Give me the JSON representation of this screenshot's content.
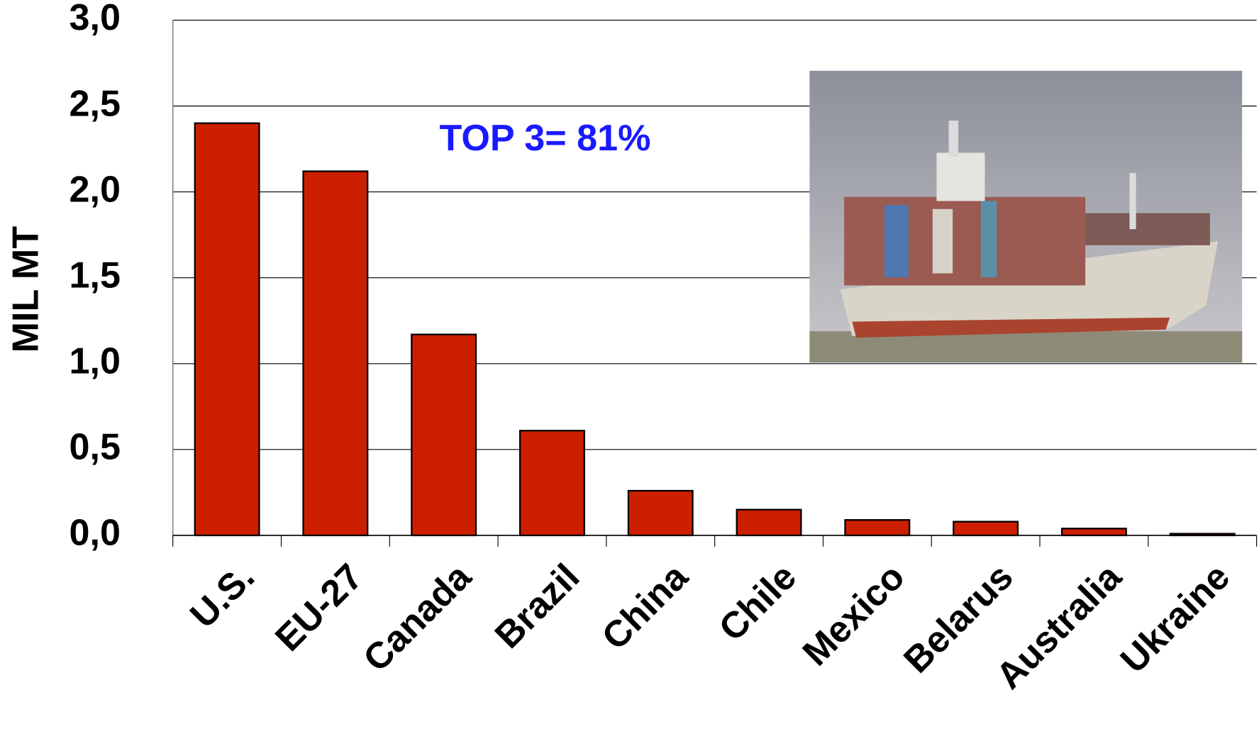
{
  "chart_data": {
    "type": "bar",
    "y_label": "MIL MT",
    "annotation": "TOP 3= 81%",
    "categories": [
      "U.S.",
      "EU-27",
      "Canada",
      "Brazil",
      "China",
      "Chile",
      "Mexico",
      "Belarus",
      "Australia",
      "Ukraine"
    ],
    "values": [
      2.4,
      2.12,
      1.17,
      0.61,
      0.26,
      0.15,
      0.09,
      0.08,
      0.04,
      0.01
    ],
    "color": "#cc1f00",
    "ylim": [
      0,
      3
    ],
    "yticks": [
      {
        "value": 0,
        "label": "0,0"
      },
      {
        "value": 0.5,
        "label": "0,5"
      },
      {
        "value": 1,
        "label": "1,0"
      },
      {
        "value": 1.5,
        "label": "1,5"
      },
      {
        "value": 2,
        "label": "2,0"
      },
      {
        "value": 2.5,
        "label": "2,5"
      },
      {
        "value": 3,
        "label": "3,0"
      }
    ],
    "grid": true
  }
}
